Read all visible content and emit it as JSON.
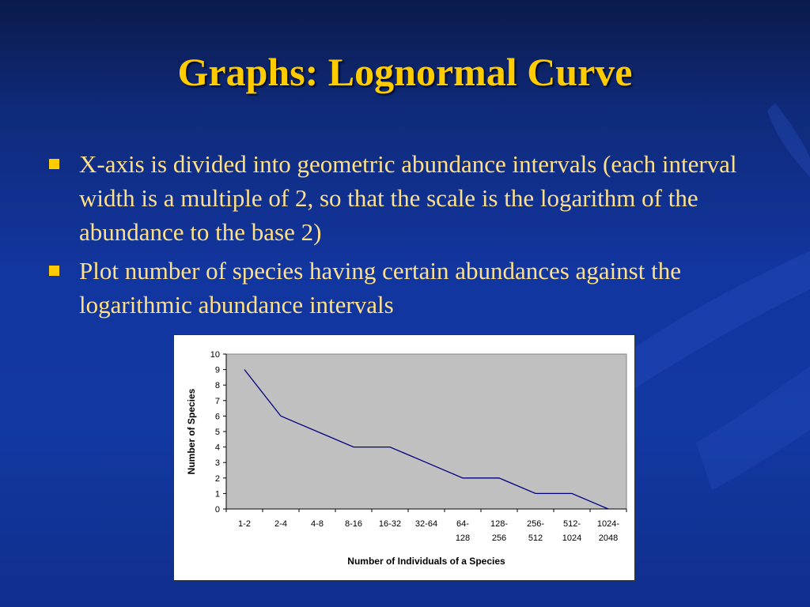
{
  "slide": {
    "title": "Graphs: Lognormal Curve",
    "bullets": [
      "X-axis is divided into geometric abundance intervals (each interval width is a multiple of 2, so that the scale is the logarithm of the abundance to the base 2)",
      "Plot number of species having certain abundances against the logarithmic abundance intervals"
    ],
    "colors": {
      "title": "#ffcc00",
      "bullet_text": "#ffe08a",
      "background": "#1236a0",
      "plot_area": "#c0c0c0",
      "line": "#000080"
    }
  },
  "chart_data": {
    "type": "line",
    "categories": [
      [
        "1-2"
      ],
      [
        "2-4"
      ],
      [
        "4-8"
      ],
      [
        "8-16"
      ],
      [
        "16-32"
      ],
      [
        "32-64"
      ],
      [
        "64-",
        "128"
      ],
      [
        "128-",
        "256"
      ],
      [
        "256-",
        "512"
      ],
      [
        "512-",
        "1024"
      ],
      [
        "1024-",
        "2048"
      ]
    ],
    "values": [
      9,
      6,
      5,
      4,
      4,
      3,
      2,
      2,
      1,
      1,
      0
    ],
    "xlabel": "Number of Individuals of a Species",
    "ylabel": "Number of Species",
    "ylim": [
      0,
      10
    ],
    "yticks": [
      "0",
      "1",
      "2",
      "3",
      "4",
      "5",
      "6",
      "7",
      "8",
      "9",
      "10"
    ],
    "grid": false,
    "legend": "none"
  }
}
